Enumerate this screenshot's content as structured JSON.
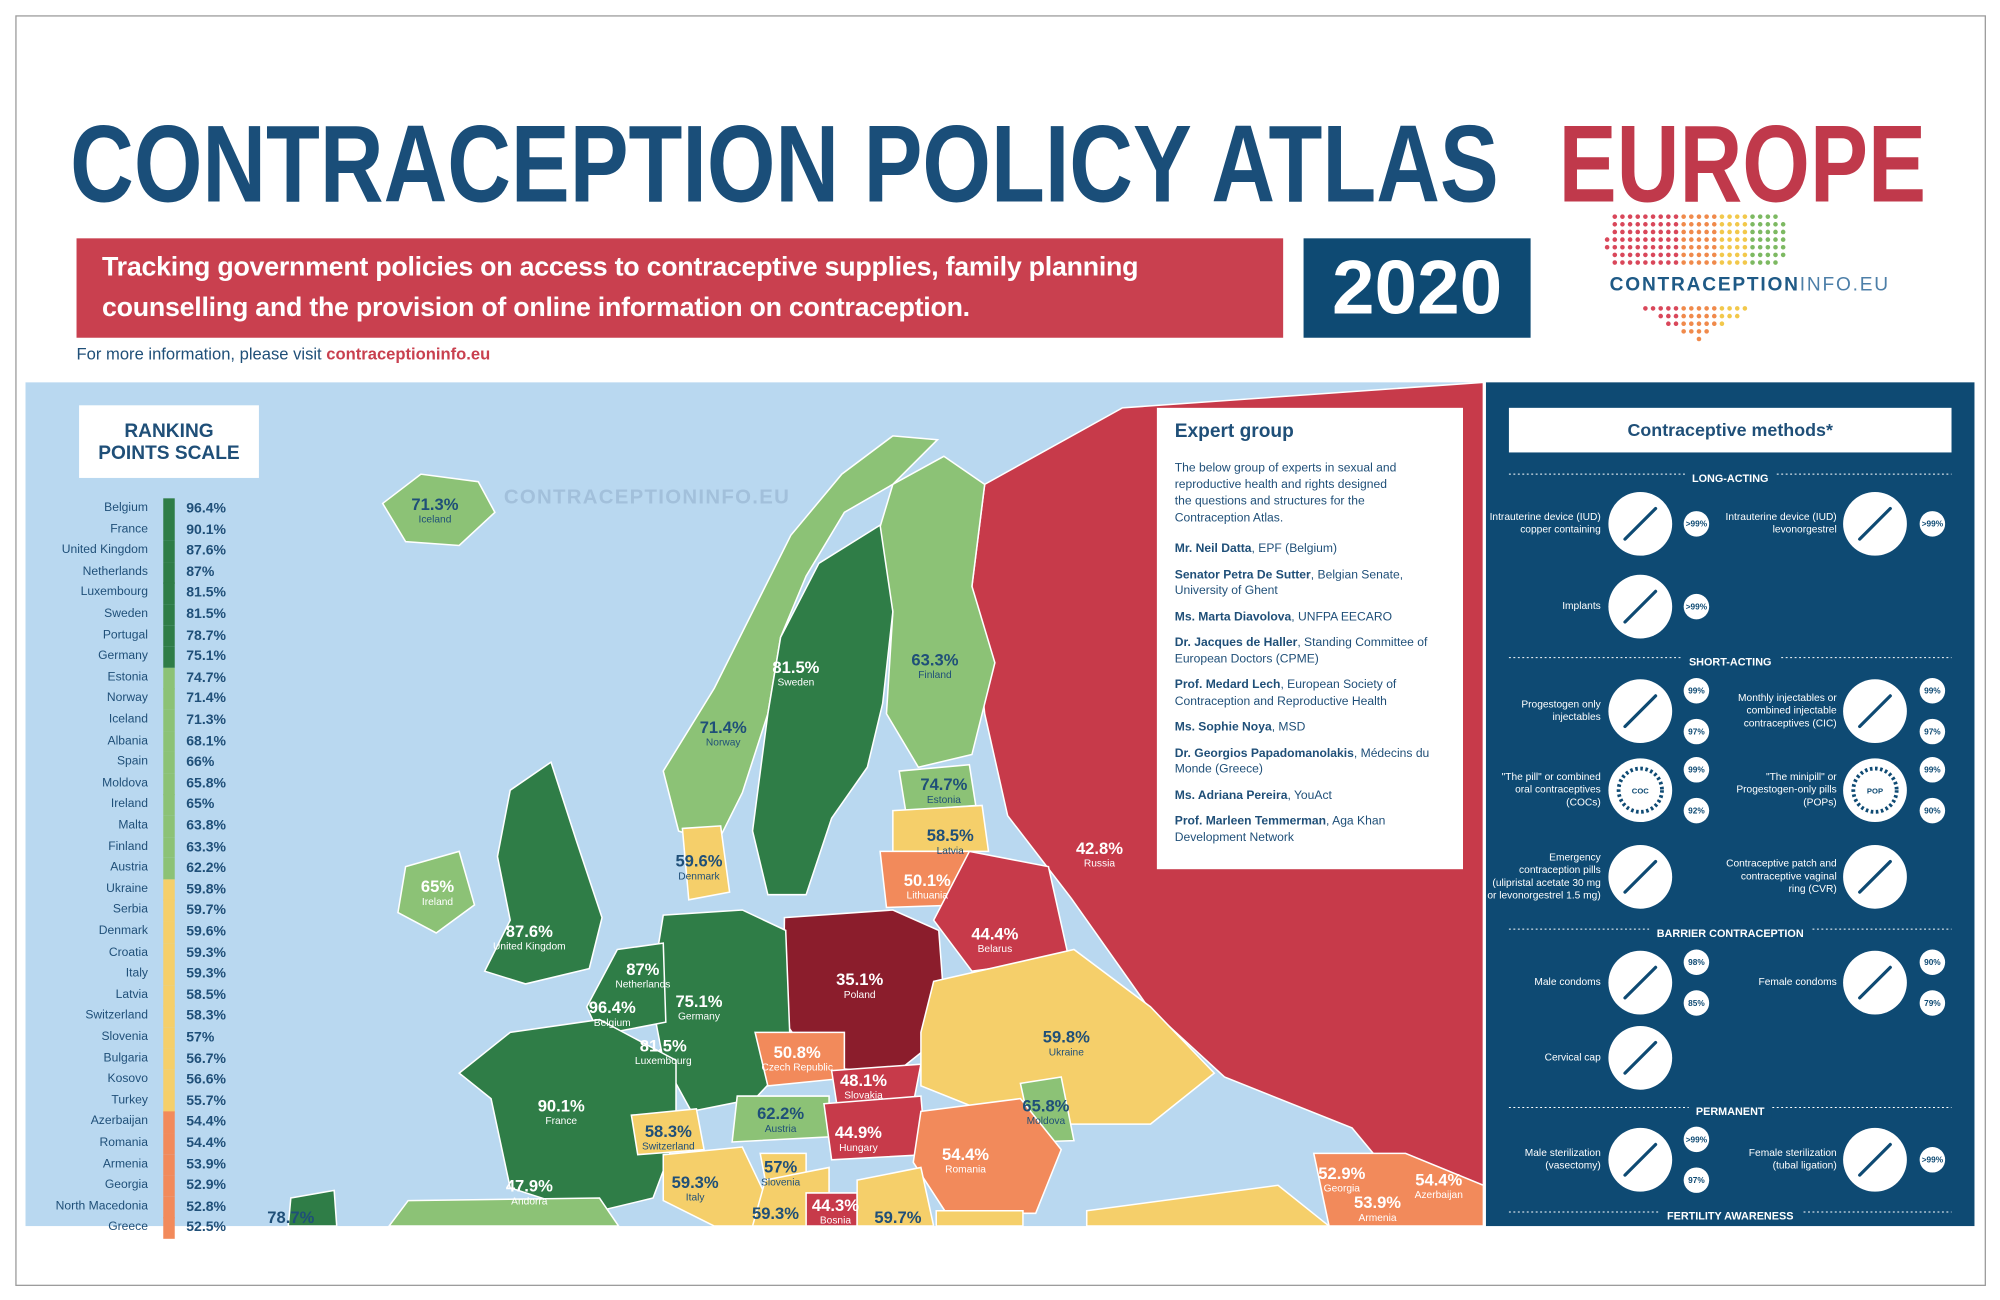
{
  "header": {
    "title_main": "CONTRACEPTION POLICY ATLAS",
    "title_accent": "EUROPE",
    "subtitle": "Tracking government policies on access to contraceptive supplies, family planning counselling and the provision of online information on contraception.",
    "year": "2020",
    "logo_main": "CONTRACEPTION",
    "logo_accent": "INFO.EU",
    "more_info": "For more information, please visit",
    "more_info_link": "contraceptioninfo.eu"
  },
  "map": {
    "watermark": "CONTRACEPTIONINFO.EU",
    "labels": [
      {
        "value": "71.3%",
        "name": "Iceland"
      },
      {
        "value": "87.6%",
        "name": "United Kingdom"
      },
      {
        "value": "65%",
        "name": "Ireland"
      },
      {
        "value": "71.4%",
        "name": "Norway"
      },
      {
        "value": "81.5%",
        "name": "Sweden"
      },
      {
        "value": "63.3%",
        "name": "Finland"
      },
      {
        "value": "74.7%",
        "name": "Estonia"
      },
      {
        "value": "58.5%",
        "name": "Latvia"
      },
      {
        "value": "50.1%",
        "name": "Lithuania"
      },
      {
        "value": "42.8%",
        "name": "Russia"
      },
      {
        "value": "44.4%",
        "name": "Belarus"
      },
      {
        "value": "35.1%",
        "name": "Poland"
      },
      {
        "value": "59.6%",
        "name": "Denmark"
      },
      {
        "value": "87%",
        "name": "Netherlands"
      },
      {
        "value": "96.4%",
        "name": "Belgium"
      },
      {
        "value": "75.1%",
        "name": "Germany"
      },
      {
        "value": "81.5%",
        "name": "Luxembourg"
      },
      {
        "value": "50.8%",
        "name": "Czech Republic"
      },
      {
        "value": "48.1%",
        "name": "Slovakia"
      },
      {
        "value": "59.8%",
        "name": "Ukraine"
      },
      {
        "value": "65.8%",
        "name": "Moldova"
      },
      {
        "value": "62.2%",
        "name": "Austria"
      },
      {
        "value": "44.9%",
        "name": "Hungary"
      },
      {
        "value": "54.4%",
        "name": "Romania"
      },
      {
        "value": "90.1%",
        "name": "France"
      },
      {
        "value": "58.3%",
        "name": "Switzerland"
      },
      {
        "value": "47.9%",
        "name": "Andorra"
      },
      {
        "value": "59.3%",
        "name": "Italy"
      },
      {
        "value": "57%",
        "name": "Slovenia"
      },
      {
        "value": "44.3%",
        "name": "Bosnia"
      },
      {
        "value": "59.7%"
      },
      {
        "value": "59.3%"
      },
      {
        "value": "52.9%",
        "name": "Georgia"
      },
      {
        "value": "54.4%",
        "name": "Azerbaijan"
      },
      {
        "value": "53.9%",
        "name": "Armenia"
      },
      {
        "value": "78.7%"
      }
    ]
  },
  "ranking": {
    "title": "RANKING POINTS SCALE",
    "groups": [
      {
        "color": "#2f7d47",
        "entries": [
          {
            "country": "Belgium",
            "score": "96.4%"
          },
          {
            "country": "France",
            "score": "90.1%"
          },
          {
            "country": "United Kingdom",
            "score": "87.6%"
          },
          {
            "country": "Netherlands",
            "score": "87%"
          },
          {
            "country": "Luxembourg",
            "score": "81.5%"
          },
          {
            "country": "Sweden",
            "score": "81.5%"
          },
          {
            "country": "Portugal",
            "score": "78.7%"
          },
          {
            "country": "Germany",
            "score": "75.1%"
          }
        ]
      },
      {
        "color": "#8cc276",
        "entries": [
          {
            "country": "Estonia",
            "score": "74.7%"
          },
          {
            "country": "Norway",
            "score": "71.4%"
          },
          {
            "country": "Iceland",
            "score": "71.3%"
          },
          {
            "country": "Albania",
            "score": "68.1%"
          },
          {
            "country": "Spain",
            "score": "66%"
          },
          {
            "country": "Moldova",
            "score": "65.8%"
          },
          {
            "country": "Ireland",
            "score": "65%"
          },
          {
            "country": "Malta",
            "score": "63.8%"
          },
          {
            "country": "Finland",
            "score": "63.3%"
          },
          {
            "country": "Austria",
            "score": "62.2%"
          }
        ]
      },
      {
        "color": "#f5cf6a",
        "entries": [
          {
            "country": "Ukraine",
            "score": "59.8%"
          },
          {
            "country": "Serbia",
            "score": "59.7%"
          },
          {
            "country": "Denmark",
            "score": "59.6%"
          },
          {
            "country": "Croatia",
            "score": "59.3%"
          },
          {
            "country": "Italy",
            "score": "59.3%"
          },
          {
            "country": "Latvia",
            "score": "58.5%"
          },
          {
            "country": "Switzerland",
            "score": "58.3%"
          },
          {
            "country": "Slovenia",
            "score": "57%"
          },
          {
            "country": "Bulgaria",
            "score": "56.7%"
          },
          {
            "country": "Kosovo",
            "score": "56.6%"
          },
          {
            "country": "Turkey",
            "score": "55.7%"
          }
        ]
      },
      {
        "color": "#f28a5b",
        "entries": [
          {
            "country": "Azerbaijan",
            "score": "54.4%"
          },
          {
            "country": "Romania",
            "score": "54.4%"
          },
          {
            "country": "Armenia",
            "score": "53.9%"
          },
          {
            "country": "Georgia",
            "score": "52.9%"
          },
          {
            "country": "North Macedonia",
            "score": "52.8%"
          },
          {
            "country": "Greece",
            "score": "52.5%"
          }
        ]
      }
    ]
  },
  "expert_group": {
    "title": "Expert group",
    "intro": "The below group of experts in sexual and reproductive health and rights designed the questions and structures for the Contraception Atlas.",
    "members": [
      {
        "name": "Mr. Neil Datta",
        "affiliation": ", EPF (Belgium)"
      },
      {
        "name": "Senator Petra De Sutter",
        "affiliation": ", Belgian Senate, University of Ghent"
      },
      {
        "name": "Ms. Marta Diavolova",
        "affiliation": ", UNFPA EECARO"
      },
      {
        "name": "Dr. Jacques de Haller",
        "affiliation": ", Standing Committee of European Doctors (CPME)"
      },
      {
        "name": "Prof. Medard Lech",
        "affiliation": ", European Society of Contraception and Reproductive Health"
      },
      {
        "name": "Ms. Sophie Noya",
        "affiliation": ", MSD"
      },
      {
        "name": "Dr. Georgios Papadomanolakis",
        "affiliation": ", Médecins du Monde (Greece)"
      },
      {
        "name": "Ms. Adriana Pereira",
        "affiliation": ", YouAct"
      },
      {
        "name": "Prof. Marleen Temmerman",
        "affiliation": ", Aga Khan Development Network"
      }
    ]
  },
  "methods": {
    "title": "Contraceptive methods*",
    "sections": [
      {
        "title": "LONG-ACTING",
        "items": [
          {
            "label": "Intrauterine device (IUD) copper containing",
            "badges": [
              ">99%"
            ]
          },
          {
            "label": "Intrauterine device (IUD) levonorgestrel",
            "badges": [
              ">99%"
            ]
          },
          {
            "label": "Implants",
            "badges": [
              ">99%"
            ]
          }
        ]
      },
      {
        "title": "SHORT-ACTING",
        "items": [
          {
            "label": "Progestogen only injectables",
            "badges": [
              "99%",
              "97%"
            ]
          },
          {
            "label": "Monthly injectables or combined injectable contraceptives (CIC)",
            "badges": [
              "99%",
              "97%"
            ]
          },
          {
            "label": "\"The pill\" or combined oral contraceptives (COCs)",
            "icon_text": "COC",
            "badges": [
              "99%",
              "92%"
            ]
          },
          {
            "label": "\"The minipill\" or Progestogen-only pills (POPs)",
            "icon_text": "POP",
            "badges": [
              "99%",
              "90%"
            ]
          },
          {
            "label": "Emergency contraception pills (ulipristal acetate 30 mg or levonorgestrel 1.5 mg)",
            "badges": []
          },
          {
            "label": "Contraceptive patch and contraceptive vaginal ring (CVR)",
            "badges": []
          }
        ]
      },
      {
        "title": "BARRIER CONTRACEPTION",
        "items": [
          {
            "label": "Male condoms",
            "badges": [
              "98%",
              "85%"
            ]
          },
          {
            "label": "Female condoms",
            "badges": [
              "90%",
              "79%"
            ]
          },
          {
            "label": "Cervical cap",
            "badges": []
          }
        ]
      },
      {
        "title": "PERMANENT",
        "items": [
          {
            "label": "Male sterilization (vasectomy)",
            "badges": [
              ">99%",
              "97%"
            ]
          },
          {
            "label": "Female sterilization (tubal ligation)",
            "badges": [
              ">99%"
            ]
          }
        ]
      },
      {
        "title": "FERTILITY AWARENESS",
        "items": []
      }
    ]
  }
}
